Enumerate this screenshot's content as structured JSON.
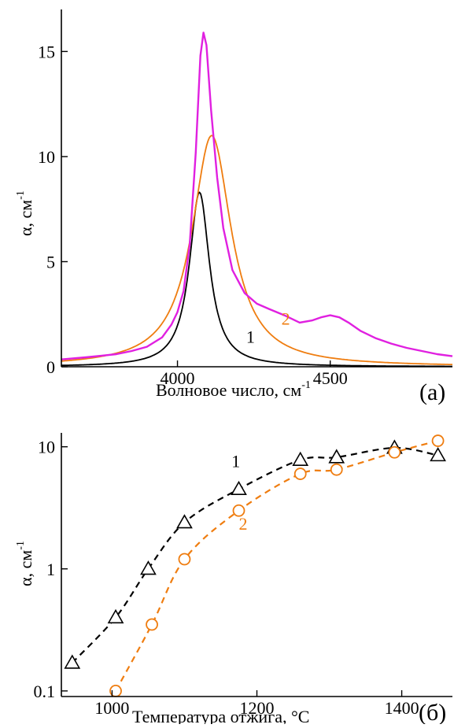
{
  "chart_data": [
    {
      "type": "line",
      "panel_label": "(а)",
      "xlabel": "Волновое число, см",
      "xlabel_sup": "-1",
      "ylabel": "α, см",
      "ylabel_sup": "-1",
      "xlim": [
        3620,
        4900
      ],
      "ylim": [
        0,
        17
      ],
      "x_ticks": [
        4000,
        4500
      ],
      "y_ticks": [
        0,
        5,
        10,
        15
      ],
      "grid": false,
      "colors": {
        "total": "#e020e0",
        "curve1": "#000000",
        "curve2": "#ef7d10"
      },
      "annotations": [
        {
          "text": "1",
          "color": "#000000",
          "x": 4225,
          "y": 1.15
        },
        {
          "text": "2",
          "color": "#ef7d10",
          "x": 4340,
          "y": 2.0
        }
      ],
      "series": [
        {
          "label": "1",
          "color": "#000000",
          "peak_x": 4072,
          "peak_y": 8.3,
          "hwhm": 40
        },
        {
          "label": "2",
          "color": "#ef7d10",
          "peak_x": 4112,
          "peak_y": 11.0,
          "hwhm": 78
        },
        {
          "color": "#e020e0",
          "x": [
            3620,
            3700,
            3800,
            3850,
            3900,
            3950,
            3980,
            4000,
            4020,
            4040,
            4060,
            4075,
            4085,
            4095,
            4110,
            4130,
            4150,
            4180,
            4220,
            4260,
            4300,
            4350,
            4400,
            4440,
            4470,
            4500,
            4530,
            4560,
            4600,
            4650,
            4700,
            4750,
            4800,
            4850,
            4900
          ],
          "y": [
            0.35,
            0.45,
            0.6,
            0.75,
            0.95,
            1.4,
            2.0,
            2.6,
            3.6,
            5.8,
            10.2,
            14.8,
            15.9,
            15.3,
            12.2,
            9.0,
            6.6,
            4.6,
            3.5,
            3.0,
            2.75,
            2.45,
            2.1,
            2.2,
            2.35,
            2.45,
            2.35,
            2.1,
            1.7,
            1.35,
            1.1,
            0.9,
            0.75,
            0.6,
            0.5
          ]
        }
      ]
    },
    {
      "type": "scatter",
      "panel_label": "(б)",
      "xlabel": "Температура отжига, °С",
      "ylabel": "α, см",
      "ylabel_sup": "-1",
      "scale_y": "log",
      "xlim": [
        930,
        1470
      ],
      "ylim": [
        0.09,
        13
      ],
      "x_ticks": [
        1000,
        1200,
        1400
      ],
      "y_ticks": [
        0.1,
        1,
        10
      ],
      "y_tick_labels": [
        "0.1",
        "1",
        "10"
      ],
      "grid": false,
      "annotations": [
        {
          "text": "1",
          "color": "#000000",
          "x": 1165,
          "y": 6.8
        },
        {
          "text": "2",
          "color": "#ef7d10",
          "x": 1175,
          "y": 2.1
        }
      ],
      "series": [
        {
          "label": "1",
          "color": "#000000",
          "marker": "triangle",
          "x": [
            945,
            1005,
            1050,
            1100,
            1175,
            1260,
            1310,
            1390,
            1450
          ],
          "y": [
            0.17,
            0.4,
            1.0,
            2.4,
            4.5,
            7.8,
            8.2,
            9.8,
            8.5
          ]
        },
        {
          "label": "2",
          "color": "#ef7d10",
          "marker": "circle",
          "x": [
            1005,
            1055,
            1100,
            1175,
            1260,
            1310,
            1390,
            1450
          ],
          "y": [
            0.1,
            0.35,
            1.2,
            3.0,
            6.0,
            6.5,
            9.0,
            11.2
          ]
        }
      ]
    }
  ]
}
